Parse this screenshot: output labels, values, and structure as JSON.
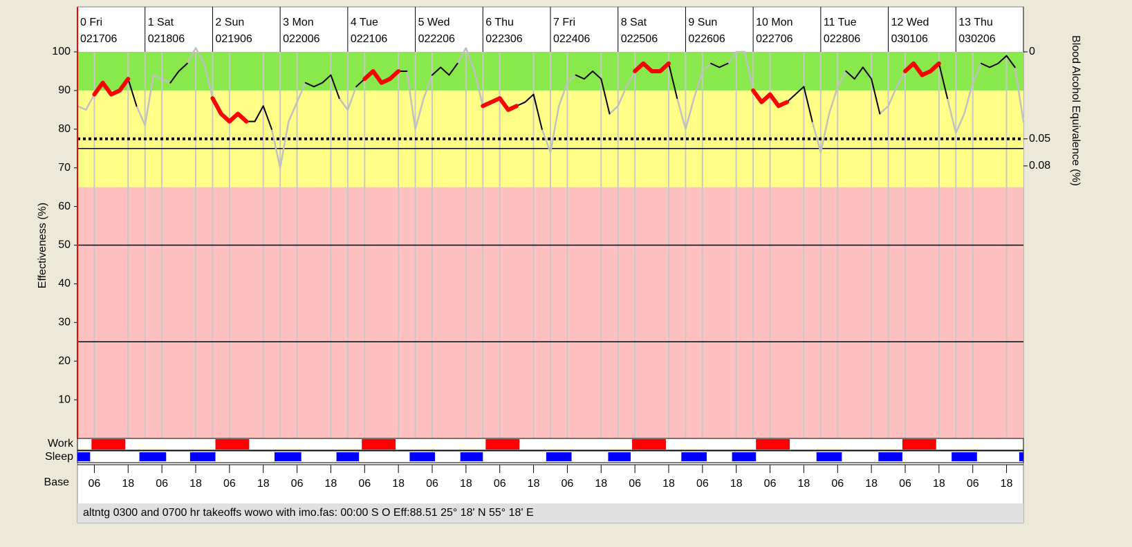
{
  "chart_data": {
    "type": "line",
    "ylabel": "Effectiveness (%)",
    "y2label": "Blood Alcohol Equivalence (%)",
    "ylim": [
      0,
      100
    ],
    "yticks": [
      10,
      20,
      30,
      40,
      50,
      60,
      70,
      80,
      90,
      100
    ],
    "xlim": [
      0,
      336
    ],
    "xticks": [
      {
        "value": 6,
        "label": "06"
      },
      18,
      {
        "value": 30,
        "label": "06"
      },
      {
        "value": 42,
        "label": "18"
      },
      {
        "value": 54,
        "label": "06"
      },
      {
        "value": 66,
        "label": "18"
      },
      {
        "value": 78,
        "label": "06"
      },
      {
        "value": 90,
        "label": "18"
      },
      {
        "value": 102,
        "label": "06"
      },
      {
        "value": 114,
        "label": "18"
      },
      {
        "value": 126,
        "label": "06"
      },
      {
        "value": 138,
        "label": "18"
      },
      {
        "value": 150,
        "label": "06"
      },
      {
        "value": 162,
        "label": "18"
      },
      {
        "value": 174,
        "label": "06"
      },
      {
        "value": 186,
        "label": "18"
      },
      {
        "value": 198,
        "label": "06"
      },
      {
        "value": 210,
        "label": "18"
      },
      {
        "value": 222,
        "label": "06"
      },
      {
        "value": 234,
        "label": "18"
      },
      {
        "value": 246,
        "label": "06"
      },
      {
        "value": 258,
        "label": "18"
      },
      {
        "value": 270,
        "label": "06"
      },
      {
        "value": 282,
        "label": "18"
      },
      {
        "value": 294,
        "label": "06"
      },
      {
        "value": 306,
        "label": "18"
      },
      {
        "value": 318,
        "label": "06"
      },
      {
        "value": 330,
        "label": "18"
      }
    ],
    "days": [
      {
        "name": "0 Fri",
        "date": "021706"
      },
      {
        "name": "1 Sat",
        "date": "021806"
      },
      {
        "name": "2 Sun",
        "date": "021906"
      },
      {
        "name": "3 Mon",
        "date": "022006"
      },
      {
        "name": "4 Tue",
        "date": "022106"
      },
      {
        "name": "5 Wed",
        "date": "022206"
      },
      {
        "name": "6 Thu",
        "date": "022306"
      },
      {
        "name": "7 Fri",
        "date": "022406"
      },
      {
        "name": "8 Sat",
        "date": "022506"
      },
      {
        "name": "9 Sun",
        "date": "022606"
      },
      {
        "name": "10 Mon",
        "date": "022706"
      },
      {
        "name": "11 Tue",
        "date": "022806"
      },
      {
        "name": "12 Wed",
        "date": "030106"
      },
      {
        "name": "13 Thu",
        "date": "030206"
      }
    ],
    "bands": [
      {
        "from": 90,
        "to": 100,
        "color": "#88e84c"
      },
      {
        "from": 65,
        "to": 90,
        "color": "#ffff88"
      },
      {
        "from": 0,
        "to": 65,
        "color": "#ffc0c0"
      }
    ],
    "reference_lines": [
      {
        "value": 77.5,
        "style": "dotted"
      },
      {
        "value": 75,
        "style": "solid"
      },
      {
        "value": 50,
        "style": "solid"
      },
      {
        "value": 25,
        "style": "solid"
      }
    ],
    "bac_scale": [
      {
        "level": 100,
        "label": "0"
      },
      {
        "level": 77.5,
        "label": "0.05"
      },
      {
        "level": 70.5,
        "label": "0.08"
      }
    ],
    "row_labels": {
      "work": "Work",
      "sleep": "Sleep",
      "base": "Base"
    },
    "work": [
      [
        5,
        17
      ],
      [
        49,
        61
      ],
      [
        101,
        113
      ],
      [
        145,
        157
      ],
      [
        197,
        209
      ],
      [
        241,
        253
      ],
      [
        293,
        305
      ]
    ],
    "sleep": [
      [
        0,
        4.5
      ],
      [
        22,
        31.5
      ],
      [
        40,
        49
      ],
      [
        70,
        79.5
      ],
      [
        92,
        100
      ],
      [
        118,
        127
      ],
      [
        136,
        144
      ],
      [
        166.5,
        175.5
      ],
      [
        188.5,
        196.5
      ],
      [
        214.5,
        223.5
      ],
      [
        232.5,
        241
      ],
      [
        262.5,
        271.5
      ],
      [
        284.5,
        293
      ],
      [
        310.5,
        319.5
      ],
      [
        334.5,
        336
      ]
    ],
    "colors": {
      "work": "#ff0000",
      "sleep": "#0000ff",
      "curve_work": "#ff0000",
      "curve_sleep": "#c0c0c0",
      "curve_awake": "#000000"
    },
    "x": [
      0,
      3,
      6,
      9,
      12,
      15,
      18,
      21,
      24,
      27,
      30,
      33,
      36,
      39,
      42,
      45,
      48,
      51,
      54,
      57,
      60,
      63,
      66,
      69,
      72,
      75,
      78,
      81,
      84,
      87,
      90,
      93,
      96,
      99,
      102,
      105,
      108,
      111,
      114,
      117,
      120,
      123,
      126,
      129,
      132,
      135,
      138,
      141,
      144,
      147,
      150,
      153,
      156,
      159,
      162,
      165,
      168,
      171,
      174,
      177,
      180,
      183,
      186,
      189,
      192,
      195,
      198,
      201,
      204,
      207,
      210,
      213,
      216,
      219,
      222,
      225,
      228,
      231,
      234,
      237,
      240,
      243,
      246,
      249,
      252,
      255,
      258,
      261,
      264,
      267,
      270,
      273,
      276,
      279,
      282,
      285,
      288,
      291,
      294,
      297,
      300,
      303,
      306,
      309,
      312,
      315,
      318,
      321,
      324,
      327,
      330,
      333,
      336
    ],
    "values": [
      86,
      85,
      89,
      92,
      89,
      90,
      93,
      86,
      81,
      94,
      93,
      92,
      95,
      97,
      101,
      97,
      88,
      84,
      82,
      84,
      82,
      82,
      86,
      80,
      70,
      82,
      87,
      92,
      91,
      92,
      94,
      88,
      85,
      91,
      93,
      95,
      92,
      93,
      95,
      95,
      80,
      88,
      94,
      96,
      94,
      97,
      101,
      95,
      86,
      87,
      88,
      85,
      86,
      87,
      89,
      80,
      74,
      86,
      92,
      94,
      93,
      95,
      93,
      84,
      86,
      91,
      95,
      97,
      95,
      95,
      97,
      88,
      80,
      88,
      95,
      97,
      96,
      97,
      100,
      100,
      90,
      87,
      89,
      86,
      87,
      89,
      91,
      82,
      74,
      84,
      91,
      95,
      93,
      96,
      93,
      84,
      86,
      91,
      95,
      97,
      94,
      95,
      97,
      88,
      79,
      84,
      92,
      97,
      96,
      97,
      99,
      96,
      82
    ],
    "status": "altntg 0300 and 0700 hr takeoffs wowo with imo.fas: 00:00 S O Eff:88.51  25° 18' N 55° 18' E"
  }
}
